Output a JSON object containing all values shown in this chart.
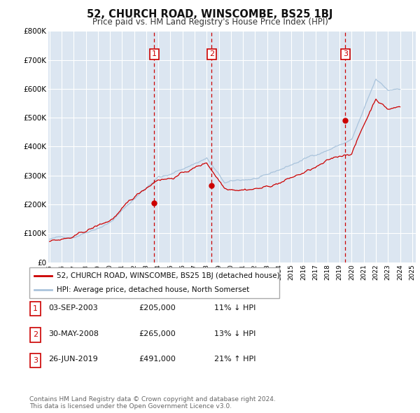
{
  "title": "52, CHURCH ROAD, WINSCOMBE, BS25 1BJ",
  "subtitle": "Price paid vs. HM Land Registry's House Price Index (HPI)",
  "ylim": [
    0,
    800000
  ],
  "xlim_start": 1994.9,
  "xlim_end": 2025.3,
  "background_color": "#ffffff",
  "plot_bg_color": "#dce6f1",
  "grid_color": "#ffffff",
  "red_line_color": "#cc0000",
  "blue_line_color": "#aac4dc",
  "dashed_line_color": "#cc0000",
  "legend_border_color": "#aaaaaa",
  "transaction_label_border": "#cc0000",
  "transactions": [
    {
      "id": 1,
      "year": 2003.67,
      "price": 205000,
      "label": "1"
    },
    {
      "id": 2,
      "year": 2008.41,
      "price": 265000,
      "label": "2"
    },
    {
      "id": 3,
      "year": 2019.48,
      "price": 491000,
      "label": "3"
    }
  ],
  "legend_entries": [
    "52, CHURCH ROAD, WINSCOMBE, BS25 1BJ (detached house)",
    "HPI: Average price, detached house, North Somerset"
  ],
  "table_entries": [
    {
      "id": 1,
      "date": "03-SEP-2003",
      "price": "£205,000",
      "hpi": "11% ↓ HPI"
    },
    {
      "id": 2,
      "date": "30-MAY-2008",
      "price": "£265,000",
      "hpi": "13% ↓ HPI"
    },
    {
      "id": 3,
      "date": "26-JUN-2019",
      "price": "£491,000",
      "hpi": "21% ↑ HPI"
    }
  ],
  "footer": "Contains HM Land Registry data © Crown copyright and database right 2024.\nThis data is licensed under the Open Government Licence v3.0."
}
